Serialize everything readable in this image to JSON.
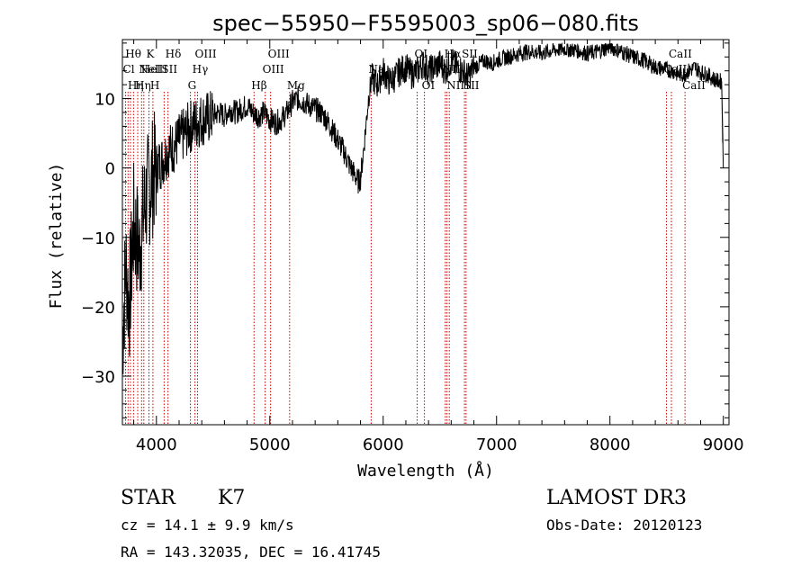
{
  "chart_data": {
    "type": "line",
    "title": "spec−55950−F5595003_sp06−080.fits",
    "xlabel": "Wavelength (Å)",
    "ylabel": "Flux (relative)",
    "xlim": [
      3700,
      9050
    ],
    "ylim": [
      -37,
      18.5
    ],
    "xticks": [
      4000,
      5000,
      6000,
      7000,
      8000,
      9000
    ],
    "xtick_labels": [
      "4000",
      "5000",
      "6000",
      "7000",
      "8000",
      "9000"
    ],
    "yticks": [
      10,
      0,
      -10,
      -20,
      -30
    ],
    "ytick_labels": [
      "10",
      "0",
      "−10",
      "−20",
      "−30"
    ],
    "series": [
      {
        "name": "flux",
        "x": [
          3700,
          3730,
          3760,
          3800,
          3850,
          3900,
          3950,
          4000,
          4050,
          4100,
          4150,
          4200,
          4250,
          4300,
          4350,
          4400,
          4450,
          4500,
          4550,
          4600,
          4650,
          4700,
          4750,
          4800,
          4850,
          4900,
          4950,
          5000,
          5050,
          5100,
          5150,
          5200,
          5250,
          5300,
          5350,
          5400,
          5450,
          5500,
          5550,
          5600,
          5650,
          5700,
          5750,
          5780,
          5800,
          5830,
          5870,
          5900,
          5950,
          6000,
          6050,
          6100,
          6150,
          6200,
          6250,
          6300,
          6350,
          6400,
          6450,
          6500,
          6550,
          6600,
          6650,
          6700,
          6750,
          6800,
          6850,
          6900,
          6950,
          7000,
          7100,
          7200,
          7300,
          7400,
          7500,
          7600,
          7700,
          7800,
          7900,
          8000,
          8100,
          8200,
          8300,
          8400,
          8500,
          8550,
          8600,
          8650,
          8700,
          8750,
          8800,
          8850,
          8900,
          8950,
          8985,
          9000
        ],
        "y": [
          -25,
          -14,
          -20,
          -8,
          -12,
          -5,
          -2,
          0,
          1,
          2.5,
          3,
          4,
          5,
          6,
          6.5,
          7,
          7.2,
          7.5,
          8,
          7.5,
          8.5,
          8,
          8.5,
          9,
          8,
          7.5,
          8,
          7,
          6.5,
          7,
          8,
          9.5,
          10,
          9.5,
          9,
          8.5,
          8,
          7,
          5.5,
          4,
          2.5,
          0.5,
          -1,
          -2,
          -1.5,
          3,
          10,
          13,
          12,
          14,
          12.5,
          13,
          14,
          14.5,
          13.5,
          14,
          15,
          14,
          14.5,
          15,
          14,
          15.5,
          14.5,
          14,
          13,
          14.5,
          15,
          15.5,
          15,
          15.5,
          16,
          16.5,
          16.8,
          16.5,
          17,
          17.2,
          17,
          16.5,
          16.8,
          17.5,
          16.8,
          16,
          15.5,
          14.5,
          14.2,
          14,
          13.5,
          13.5,
          14,
          14.5,
          13.8,
          13.5,
          13,
          12.5,
          12.5,
          0
        ]
      }
    ],
    "lines": [
      {
        "x": 3728,
        "label": "Cl",
        "row": 1
      },
      {
        "x": 3750,
        "label": "Hθ",
        "row": 0
      },
      {
        "x": 3771,
        "label": "Hη",
        "row": 2
      },
      {
        "x": 3798,
        "label": "",
        "row": 0
      },
      {
        "x": 3835,
        "label": "Hη",
        "row": 2
      },
      {
        "x": 3869,
        "label": "NeIII",
        "row": 1
      },
      {
        "x": 3889,
        "label": "HeI",
        "row": 1
      },
      {
        "x": 3934,
        "label": "K",
        "row": 0
      },
      {
        "x": 3969,
        "label": "H",
        "row": 2
      },
      {
        "x": 4068,
        "label": "SII",
        "row": 1
      },
      {
        "x": 4102,
        "label": "Hδ",
        "row": 0
      },
      {
        "x": 4300,
        "label": "G",
        "row": 2
      },
      {
        "x": 4340,
        "label": "Hγ",
        "row": 1
      },
      {
        "x": 4363,
        "label": "OIII",
        "row": 0
      },
      {
        "x": 4861,
        "label": "Hβ",
        "row": 2
      },
      {
        "x": 4959,
        "label": "OIII",
        "row": 1
      },
      {
        "x": 5007,
        "label": "OIII",
        "row": 0
      },
      {
        "x": 5175,
        "label": "Mg",
        "row": 2
      },
      {
        "x": 5894,
        "label": "Na",
        "row": 1
      },
      {
        "x": 6300,
        "label": "OI",
        "row": 0
      },
      {
        "x": 6364,
        "label": "OI",
        "row": 2
      },
      {
        "x": 6548,
        "label": "NII",
        "row": 1
      },
      {
        "x": 6563,
        "label": "Hα",
        "row": 0
      },
      {
        "x": 6583,
        "label": "NII",
        "row": 2
      },
      {
        "x": 6717,
        "label": "SII",
        "row": 0
      },
      {
        "x": 6731,
        "label": "SII",
        "row": 2
      },
      {
        "x": 8498,
        "label": "CaII",
        "row": 1
      },
      {
        "x": 8542,
        "label": "CaII",
        "row": 0
      },
      {
        "x": 8662,
        "label": "CaII",
        "row": 2
      }
    ]
  },
  "info": {
    "class_label": "STAR",
    "subclass": "K7",
    "survey": "LAMOST DR3",
    "redshift_line": "cz = 14.1 ± 9.9 km/s",
    "obs_date": "Obs-Date: 20120123",
    "coords_line": "RA = 143.32035, DEC =  16.41745"
  },
  "colors": {
    "spectrum": "#000000",
    "line_marker": "#cc0000",
    "background": "#ffffff"
  }
}
